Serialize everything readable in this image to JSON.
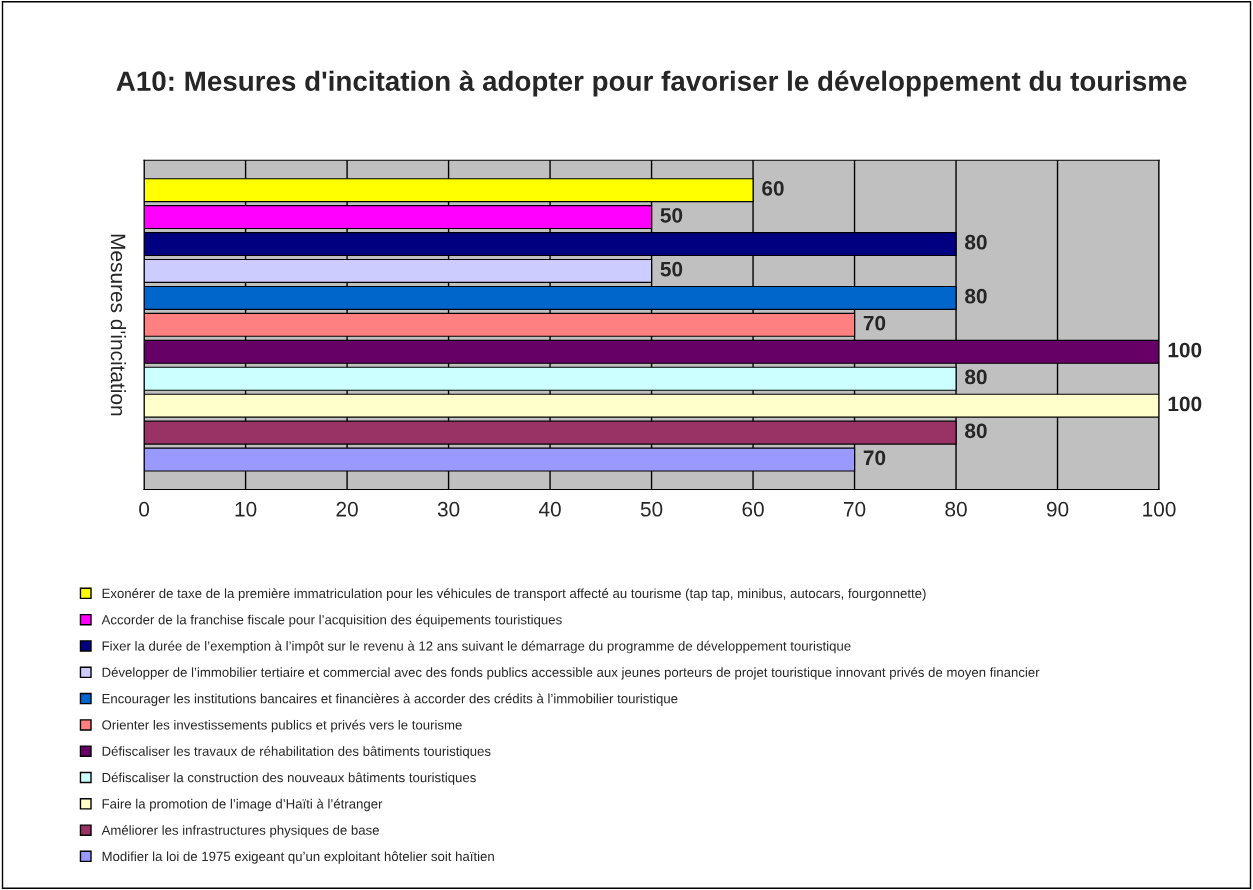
{
  "chart_data": {
    "type": "bar",
    "orientation": "horizontal",
    "title": "A10: Mesures d'incitation à adopter pour favoriser le développement du tourisme",
    "ylabel": "Mesures d'incitation",
    "categories": [
      null
    ],
    "series": [
      {
        "name": "Exonérer de taxe de la première immatriculation pour les véhicules de transport affecté au tourisme (tap tap, minibus, autocars, fourgonnette)",
        "color": "#ffff00",
        "values": [
          60
        ]
      },
      {
        "name": "Accorder de la franchise fiscale pour l’acquisition des équipements touristiques",
        "color": "#ff00ff",
        "values": [
          50
        ]
      },
      {
        "name": "Fixer la durée de l’exemption à l’impôt sur le revenu à 12 ans suivant le démarrage du programme de développement touristique",
        "color": "#000080",
        "values": [
          80
        ]
      },
      {
        "name": "Développer de l’immobilier tertiaire et commercial avec des fonds publics accessible aux jeunes porteurs de projet touristique innovant privés de moyen financier",
        "color": "#ccccff",
        "values": [
          50
        ]
      },
      {
        "name": "Encourager les institutions bancaires et financières à accorder des crédits à l’immobilier touristique",
        "color": "#0066cc",
        "values": [
          80
        ]
      },
      {
        "name": "Orienter les investissements publics et privés vers le tourisme",
        "color": "#ff8080",
        "values": [
          70
        ]
      },
      {
        "name": "Défiscaliser les travaux de réhabilitation des bâtiments touristiques",
        "color": "#660066",
        "values": [
          100
        ]
      },
      {
        "name": "Défiscaliser la construction des nouveaux bâtiments touristiques",
        "color": "#ccffff",
        "values": [
          80
        ]
      },
      {
        "name": "Faire la promotion de l’image d’Haïti à l’étranger",
        "color": "#ffffcc",
        "values": [
          100
        ]
      },
      {
        "name": "Améliorer les infrastructures physiques de base",
        "color": "#993366",
        "values": [
          80
        ]
      },
      {
        "name": "Modifier la loi de 1975 exigeant qu’un exploitant hôtelier soit haïtien",
        "color": "#9999ff",
        "values": [
          70
        ]
      }
    ],
    "xlim": [
      0,
      100
    ],
    "xticks": [
      0,
      10,
      20,
      30,
      40,
      50,
      60,
      70,
      80,
      90,
      100
    ],
    "grid": "x",
    "legend": "bottom",
    "data_labels": true
  }
}
